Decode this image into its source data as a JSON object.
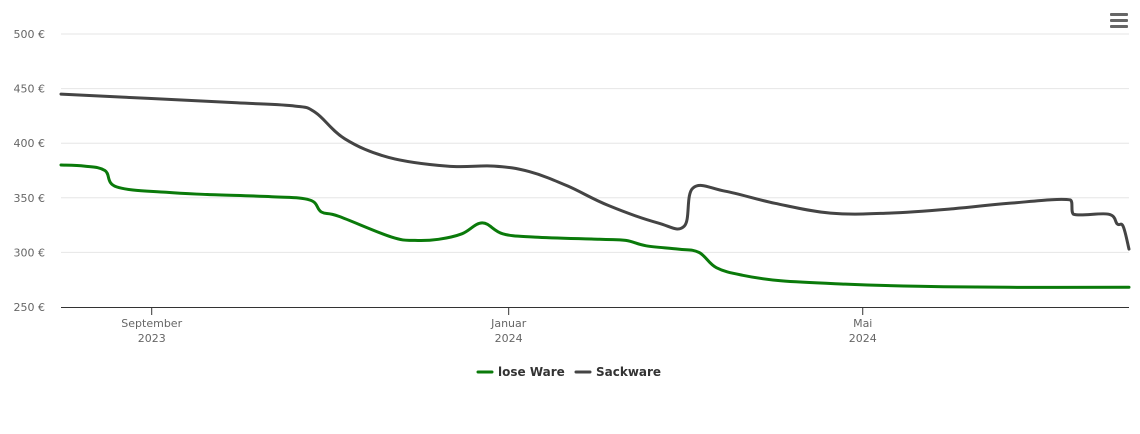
{
  "chart_data": {
    "type": "line",
    "title": "",
    "xlabel": "",
    "ylabel": "",
    "ylim": [
      250,
      500
    ],
    "y_ticks": [
      "250 €",
      "300 €",
      "350 €",
      "400 €",
      "450 €",
      "500 €"
    ],
    "y_tick_values": [
      250,
      300,
      350,
      400,
      450,
      500
    ],
    "xlim": [
      "2023-08-01",
      "2024-07-31"
    ],
    "x_ticks": [
      {
        "date": "2023-09-01",
        "month": "September",
        "year": "2023"
      },
      {
        "date": "2024-01-01",
        "month": "Januar",
        "year": "2024"
      },
      {
        "date": "2024-05-01",
        "month": "Mai",
        "year": "2024"
      }
    ],
    "grid": "horizontal",
    "legend_position": "bottom-center",
    "series": [
      {
        "name": "lose Ware",
        "color": "#0a7a0a",
        "points": [
          [
            "2023-08-01",
            380
          ],
          [
            "2023-08-09",
            379
          ],
          [
            "2023-08-16",
            375
          ],
          [
            "2023-08-20",
            360
          ],
          [
            "2023-09-06",
            355
          ],
          [
            "2023-09-20",
            353
          ],
          [
            "2023-10-12",
            351
          ],
          [
            "2023-10-25",
            348
          ],
          [
            "2023-10-29",
            337
          ],
          [
            "2023-11-04",
            333
          ],
          [
            "2023-11-22",
            314
          ],
          [
            "2023-11-30",
            311
          ],
          [
            "2023-12-08",
            312
          ],
          [
            "2023-12-16",
            317
          ],
          [
            "2023-12-23",
            327
          ],
          [
            "2023-12-30",
            317
          ],
          [
            "2024-01-10",
            314
          ],
          [
            "2024-02-01",
            312
          ],
          [
            "2024-02-10",
            311
          ],
          [
            "2024-02-17",
            306
          ],
          [
            "2024-02-28",
            303
          ],
          [
            "2024-03-06",
            300
          ],
          [
            "2024-03-12",
            286
          ],
          [
            "2024-03-21",
            279
          ],
          [
            "2024-04-03",
            274
          ],
          [
            "2024-04-25",
            271
          ],
          [
            "2024-05-20",
            269
          ],
          [
            "2024-06-20",
            268
          ],
          [
            "2024-07-31",
            268
          ]
        ]
      },
      {
        "name": "Sackware",
        "color": "#444444",
        "points": [
          [
            "2023-08-01",
            445
          ],
          [
            "2023-08-31",
            441
          ],
          [
            "2023-09-30",
            437
          ],
          [
            "2023-10-20",
            434
          ],
          [
            "2023-10-27",
            428
          ],
          [
            "2023-11-06",
            404
          ],
          [
            "2023-11-21",
            387
          ],
          [
            "2023-12-11",
            379
          ],
          [
            "2023-12-27",
            379
          ],
          [
            "2024-01-08",
            374
          ],
          [
            "2024-01-21",
            361
          ],
          [
            "2024-02-04",
            343
          ],
          [
            "2024-02-21",
            327
          ],
          [
            "2024-03-01",
            324
          ],
          [
            "2024-03-04",
            359
          ],
          [
            "2024-03-15",
            356
          ],
          [
            "2024-04-01",
            345
          ],
          [
            "2024-04-20",
            336
          ],
          [
            "2024-05-10",
            336
          ],
          [
            "2024-06-01",
            340
          ],
          [
            "2024-06-20",
            345
          ],
          [
            "2024-07-11",
            348
          ],
          [
            "2024-07-12",
            335
          ],
          [
            "2024-07-24",
            335
          ],
          [
            "2024-07-27",
            326
          ],
          [
            "2024-07-29",
            324
          ],
          [
            "2024-07-31",
            303
          ]
        ]
      }
    ]
  },
  "toolbar": {
    "menu_icon": "hamburger-menu-icon"
  }
}
